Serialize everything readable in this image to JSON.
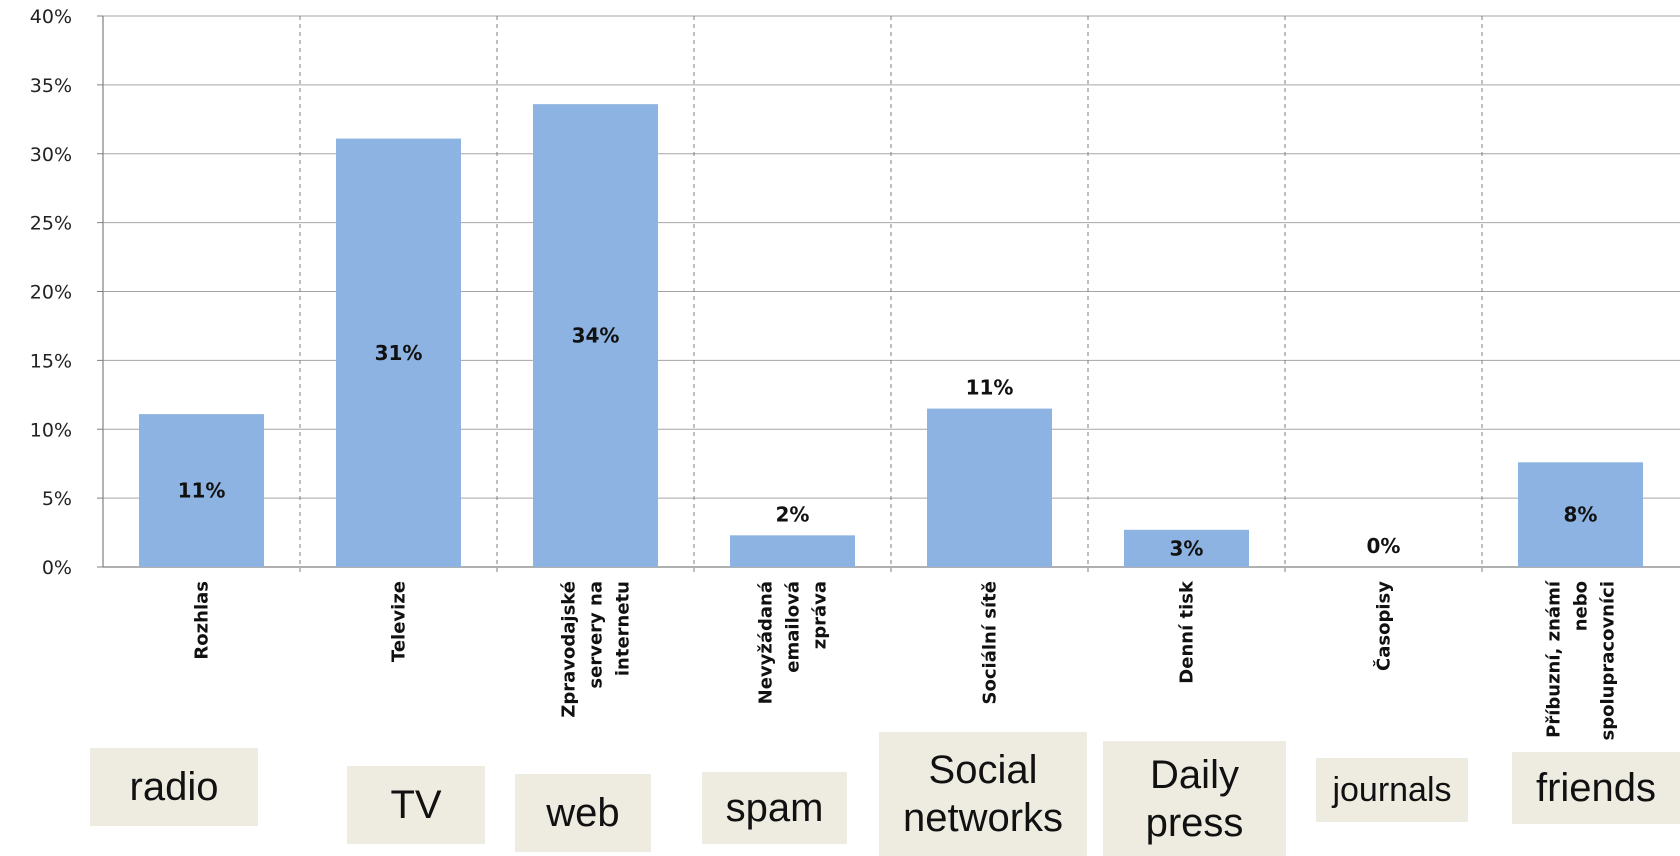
{
  "chart_data": {
    "type": "bar",
    "categories": [
      "Rozhlas",
      "Televize",
      "Zpravodajské servery na internetu",
      "Nevyžádaná emailová zpráva",
      "Sociální sítě",
      "Denní tisk",
      "Časopisy",
      "Příbuzní, známí nebo spolupracovníci"
    ],
    "category_label_lines": [
      [
        "Rozhlas"
      ],
      [
        "Televize"
      ],
      [
        "Zpravodajské",
        "servery na",
        "internetu"
      ],
      [
        "Nevyžádaná",
        "emailová",
        "zpráva"
      ],
      [
        "Sociální sítě"
      ],
      [
        "Denní tisk"
      ],
      [
        "Časopisy"
      ],
      [
        "Příbuzní, známí",
        "nebo",
        "spolupracovníci"
      ]
    ],
    "values": [
      11.1,
      31.1,
      33.6,
      2.3,
      11.5,
      2.7,
      0,
      7.6
    ],
    "data_labels": [
      "11%",
      "31%",
      "34%",
      "2%",
      "11%",
      "3%",
      "0%",
      "8%"
    ],
    "data_label_inside": [
      true,
      true,
      true,
      false,
      false,
      true,
      false,
      true
    ],
    "ylim": [
      0,
      40
    ],
    "y_ticks": [
      "0%",
      "5%",
      "10%",
      "15%",
      "20%",
      "25%",
      "30%",
      "35%",
      "40%"
    ],
    "grid": true,
    "bar_color": "#8db3e2",
    "title": "",
    "xlabel": "",
    "ylabel": ""
  },
  "annotations": {
    "english_labels": [
      {
        "text": "radio",
        "lines": [
          "radio"
        ]
      },
      {
        "text": "TV",
        "lines": [
          "TV"
        ]
      },
      {
        "text": "web",
        "lines": [
          "web"
        ]
      },
      {
        "text": "spam",
        "lines": [
          "spam"
        ]
      },
      {
        "text": "Social networks",
        "lines": [
          "Social",
          "networks"
        ]
      },
      {
        "text": "Daily press",
        "lines": [
          "Daily",
          "press"
        ]
      },
      {
        "text": "journals",
        "lines": [
          "journals"
        ]
      },
      {
        "text": "friends",
        "lines": [
          "friends"
        ]
      }
    ],
    "label_background": "#eeece1"
  }
}
